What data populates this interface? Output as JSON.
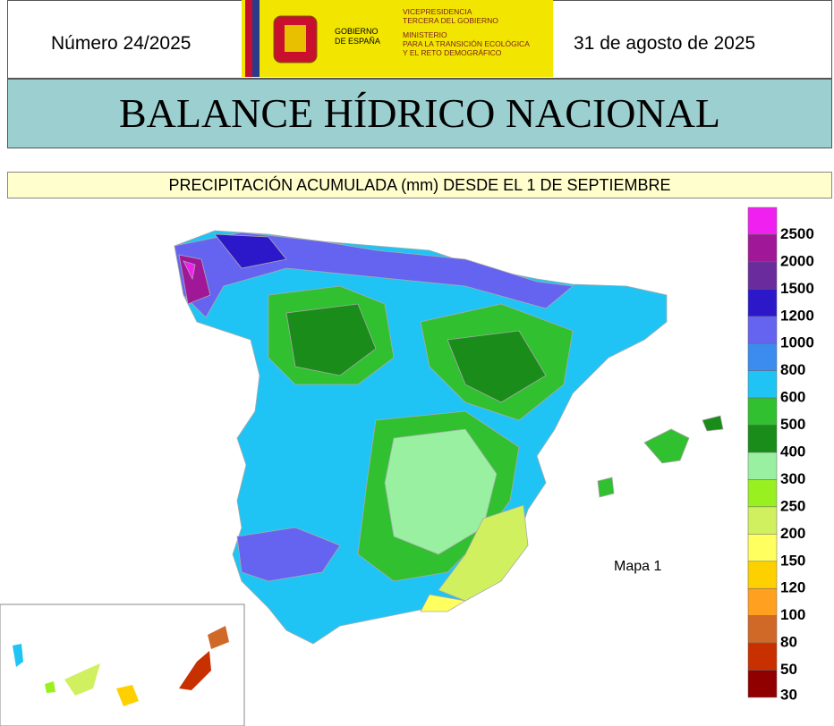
{
  "header": {
    "number": "Número 24/2025",
    "date": "31 de agosto de 2025",
    "logo": {
      "government": [
        "GOBIERNO",
        "DE ESPAÑA"
      ],
      "ministry": [
        "VICEPRESIDENCIA",
        "TERCERA DEL GOBIERNO",
        "MINISTERIO",
        "PARA LA TRANSICIÓN ECOLÓGICA",
        "Y EL RETO DEMOGRÁFICO"
      ]
    }
  },
  "title": "BALANCE HÍDRICO NACIONAL",
  "subtitle": "PRECIPITACIÓN ACUMULADA (mm) DESDE EL 1 DE SEPTIEMBRE",
  "map": {
    "label": "Mapa 1"
  },
  "legend": {
    "items": [
      {
        "label": 2500,
        "color": "#f020f0"
      },
      {
        "label": 2000,
        "color": "#a01898"
      },
      {
        "label": 1500,
        "color": "#6a2c9c"
      },
      {
        "label": 1200,
        "color": "#2c18c8"
      },
      {
        "label": 1000,
        "color": "#6464f0"
      },
      {
        "label": 800,
        "color": "#3c8cf0"
      },
      {
        "label": 600,
        "color": "#20c4f4"
      },
      {
        "label": 500,
        "color": "#30c030"
      },
      {
        "label": 400,
        "color": "#1a8c1a"
      },
      {
        "label": 300,
        "color": "#98f0a0"
      },
      {
        "label": 250,
        "color": "#98f020"
      },
      {
        "label": 200,
        "color": "#d0f060"
      },
      {
        "label": 150,
        "color": "#ffff60"
      },
      {
        "label": 120,
        "color": "#ffd000"
      },
      {
        "label": 100,
        "color": "#ffa020"
      },
      {
        "label": 80,
        "color": "#d06828"
      },
      {
        "label": 50,
        "color": "#c83000"
      },
      {
        "label": 30,
        "color": "#900000"
      }
    ]
  }
}
